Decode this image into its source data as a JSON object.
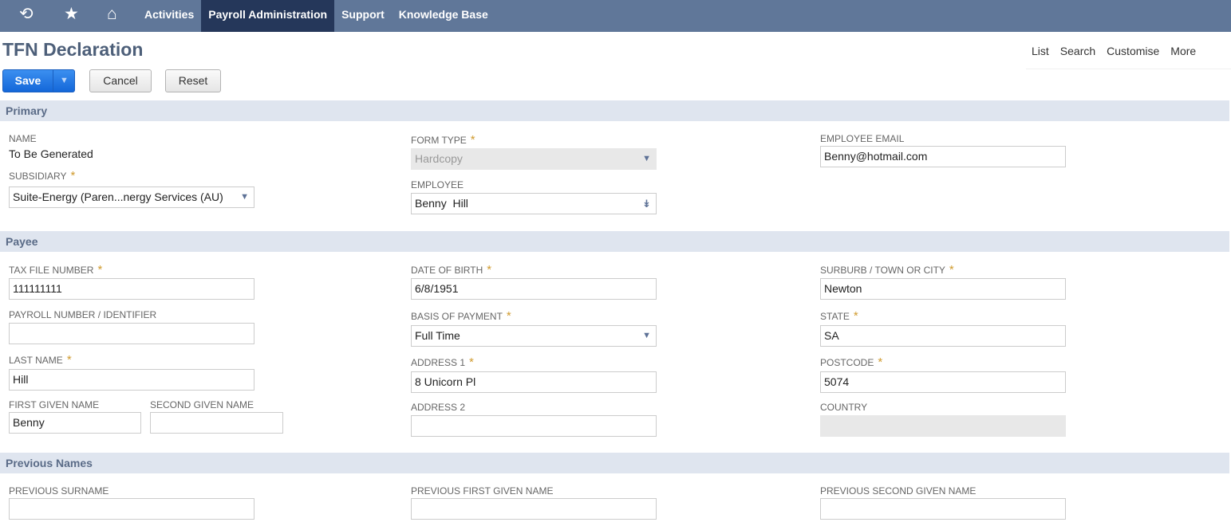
{
  "nav": {
    "icons": [
      "recent-icon",
      "star-icon",
      "home-icon"
    ],
    "items": [
      "Activities",
      "Payroll Administration",
      "Support",
      "Knowledge Base"
    ],
    "active": "Payroll Administration"
  },
  "page": {
    "title": "TFN Declaration",
    "links": [
      "List",
      "Search",
      "Customise",
      "More"
    ]
  },
  "buttons": {
    "save": "Save",
    "cancel": "Cancel",
    "reset": "Reset"
  },
  "sections": {
    "primary": "Primary",
    "payee": "Payee",
    "previous": "Previous Names"
  },
  "primary": {
    "name_label": "NAME",
    "name_value": "To Be Generated",
    "subsidiary_label": "SUBSIDIARY",
    "subsidiary_value": "Suite-Energy (Paren...nergy Services (AU)",
    "form_type_label": "FORM TYPE",
    "form_type_value": "Hardcopy",
    "employee_label": "EMPLOYEE",
    "employee_value": "Benny  Hill",
    "email_label": "EMPLOYEE EMAIL",
    "email_value": "Benny@hotmail.com"
  },
  "payee": {
    "tfn_label": "TAX FILE NUMBER",
    "tfn_value": "111111111",
    "payroll_label": "PAYROLL NUMBER / IDENTIFIER",
    "payroll_value": "",
    "last_label": "LAST NAME",
    "last_value": "Hill",
    "first_label": "FIRST GIVEN NAME",
    "first_value": "Benny",
    "second_label": "SECOND GIVEN NAME",
    "second_value": "",
    "dob_label": "DATE OF BIRTH",
    "dob_value": "6/8/1951",
    "basis_label": "BASIS OF PAYMENT",
    "basis_value": "Full Time",
    "addr1_label": "ADDRESS 1",
    "addr1_value": "8 Unicorn Pl",
    "addr2_label": "ADDRESS 2",
    "addr2_value": "",
    "city_label": "SURBURB / TOWN OR CITY",
    "city_value": "Newton",
    "state_label": "STATE",
    "state_value": "SA",
    "postcode_label": "POSTCODE",
    "postcode_value": "5074",
    "country_label": "COUNTRY",
    "country_value": ""
  },
  "previous": {
    "surname_label": "PREVIOUS SURNAME",
    "first_label": "PREVIOUS FIRST GIVEN NAME",
    "second_label": "PREVIOUS SECOND GIVEN NAME"
  },
  "required_marker": "*",
  "colors": {
    "nav": "#607799",
    "nav_active": "#25375a",
    "save": "#1f77e6",
    "section": "#dfe5ef",
    "required": "#d09b2f"
  }
}
